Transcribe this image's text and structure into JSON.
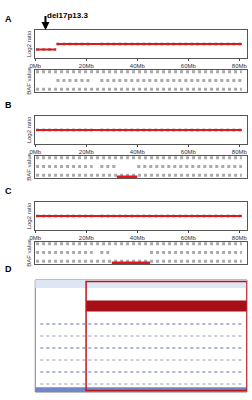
{
  "chart_data": [
    {
      "type": "line",
      "panel": "A",
      "ylabel": "Log2 ratio",
      "xlim": [
        0,
        83
      ],
      "xticks": [
        {
          "value": 0,
          "label": "0Mb"
        },
        {
          "value": 20,
          "label": "20Mb"
        },
        {
          "value": 40,
          "label": "40Mb"
        },
        {
          "value": 60,
          "label": "60Mb"
        },
        {
          "value": 80,
          "label": "80Mb"
        }
      ],
      "ylim": [
        -1.5,
        1.5
      ],
      "tick_labels": "x",
      "grid": false,
      "annotations": [
        {
          "text": "del17p13.3",
          "x": 4,
          "y": 1.5
        }
      ],
      "series": [
        {
          "color": "#aaaaaa",
          "line_style": "dotted",
          "x": [
            0.3,
            8.2,
            8.25,
            8.3,
            22.5,
            22.6,
            25.5,
            81
          ],
          "values": [
            -0.6,
            -0.6,
            null,
            0,
            0,
            null,
            0,
            0
          ]
        },
        {
          "color": "#e8141c",
          "line_style": "solid",
          "x": [
            0.3,
            8.2,
            8.25,
            8.3,
            81
          ],
          "values": [
            -0.6,
            -0.6,
            null,
            0,
            0
          ]
        }
      ]
    },
    {
      "type": "line",
      "ylabel": "BAF value",
      "xlim": [
        0,
        83
      ],
      "ylim": [
        -0.15,
        1.1
      ],
      "tick_labels": false,
      "grid": false,
      "series": [
        {
          "color": "#aaaaaa",
          "line_style": "dotted",
          "x": [
            0.3,
            81
          ],
          "values": [
            1,
            1
          ]
        },
        {
          "color": "#aaaaaa",
          "line_style": "dotted",
          "x": [
            8.3,
            22.5,
            22.6,
            25.5,
            81
          ],
          "values": [
            0.5,
            0.5,
            null,
            0.5,
            0.5
          ]
        },
        {
          "color": "#aaaaaa",
          "line_style": "dotted",
          "x": [
            0.3,
            81
          ],
          "values": [
            0,
            0
          ]
        }
      ]
    },
    {
      "type": "line",
      "panel": "B",
      "ylabel": "Log2 ratio",
      "xlim": [
        0,
        83
      ],
      "xticks": [
        {
          "value": 0,
          "label": "0Mb"
        },
        {
          "value": 20,
          "label": "20Mb"
        },
        {
          "value": 40,
          "label": "40Mb"
        },
        {
          "value": 60,
          "label": "60Mb"
        },
        {
          "value": 80,
          "label": "80Mb"
        }
      ],
      "ylim": [
        -1.5,
        1.5
      ],
      "tick_labels": "x",
      "grid": false,
      "series": [
        {
          "color": "#aaaaaa",
          "line_style": "dotted",
          "x": [
            0.3,
            22.5,
            22.6,
            25.5,
            81
          ],
          "values": [
            0,
            0,
            null,
            0,
            0
          ]
        },
        {
          "color": "#e8141c",
          "line_style": "solid",
          "x": [
            0.3,
            81
          ],
          "values": [
            0,
            0
          ]
        }
      ]
    },
    {
      "type": "line",
      "ylabel": "BAF value",
      "xlim": [
        0,
        83
      ],
      "ylim": [
        -0.15,
        1.1
      ],
      "tick_labels": false,
      "grid": false,
      "regions": [
        {
          "start": 32,
          "end": 40,
          "level": -0.1,
          "color": "#e8141c"
        }
      ],
      "series": [
        {
          "color": "#aaaaaa",
          "line_style": "dotted",
          "x": [
            0.3,
            81
          ],
          "values": [
            1,
            1
          ]
        },
        {
          "color": "#aaaaaa",
          "line_style": "dotted",
          "x": [
            0.3,
            22.5,
            22.6,
            25.5,
            32,
            32.1,
            40,
            81
          ],
          "values": [
            0.5,
            0.5,
            null,
            0.5,
            0.5,
            null,
            0.5,
            0.5
          ]
        },
        {
          "color": "#aaaaaa",
          "line_style": "dotted",
          "x": [
            0.3,
            81
          ],
          "values": [
            0,
            0
          ]
        }
      ]
    },
    {
      "type": "line",
      "panel": "C",
      "ylabel": "Log2 ratio",
      "xlim": [
        0,
        83
      ],
      "xticks": [
        {
          "value": 0,
          "label": "0Mb"
        },
        {
          "value": 20,
          "label": "20Mb"
        },
        {
          "value": 40,
          "label": "40Mb"
        },
        {
          "value": 60,
          "label": "60Mb"
        },
        {
          "value": 80,
          "label": "80Mb"
        }
      ],
      "ylim": [
        -1.5,
        1.5
      ],
      "tick_labels": "x",
      "grid": false,
      "series": [
        {
          "color": "#aaaaaa",
          "line_style": "dotted",
          "x": [
            0.3,
            22.5,
            22.6,
            25.5,
            81
          ],
          "values": [
            0,
            0,
            null,
            0,
            0
          ]
        },
        {
          "color": "#e8141c",
          "line_style": "solid",
          "x": [
            0.3,
            81
          ],
          "values": [
            0,
            0
          ]
        }
      ]
    },
    {
      "type": "line",
      "ylabel": "BAF value",
      "xlim": [
        0,
        83
      ],
      "ylim": [
        -0.15,
        1.1
      ],
      "tick_labels": false,
      "grid": false,
      "regions": [
        {
          "start": 30,
          "end": 45,
          "level": -0.1,
          "color": "#e8141c"
        }
      ],
      "series": [
        {
          "color": "#aaaaaa",
          "line_style": "dotted",
          "x": [
            0.3,
            81
          ],
          "values": [
            1,
            1
          ]
        },
        {
          "color": "#aaaaaa",
          "line_style": "dotted",
          "x": [
            0.3,
            22.5,
            22.6,
            25.5,
            30,
            30.1,
            45,
            81
          ],
          "values": [
            0.5,
            0.5,
            null,
            0.5,
            0.5,
            null,
            0.5,
            0.5
          ]
        },
        {
          "color": "#aaaaaa",
          "line_style": "dotted",
          "x": [
            0.3,
            81
          ],
          "values": [
            0,
            0
          ]
        }
      ]
    },
    {
      "type": "bar",
      "panel": "D",
      "orientation": "horizontal",
      "xlim": [
        0,
        100
      ],
      "tick_labels": false,
      "grid": false,
      "categories": [
        null
      ],
      "start": [
        24
      ],
      "values": [
        76
      ],
      "color": "#a50f15"
    }
  ]
}
